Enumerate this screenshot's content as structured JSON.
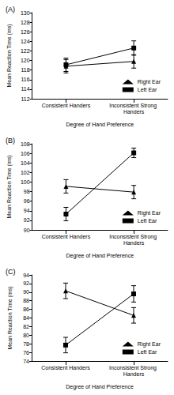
{
  "chart_data": [
    {
      "type": "line",
      "title": "(A)",
      "x_label": "Degree of Hand Preference",
      "y_label": "Mean Reaction Time (ms)",
      "categories": [
        "Consistent Handers",
        "Inconsistent Strong Handers"
      ],
      "ylim": [
        112,
        130
      ],
      "yticks": [
        112,
        114,
        116,
        118,
        120,
        122,
        124,
        126,
        128,
        130
      ],
      "grid": false,
      "legend": "lower right",
      "series": [
        {
          "name": "Right Ear",
          "color": "#000000",
          "marker": "triangle",
          "values": [
            118.8,
            119.8
          ],
          "errors": [
            1.4,
            1.4
          ]
        },
        {
          "name": "Left Ear",
          "color": "#000000",
          "marker": "square",
          "values": [
            119.1,
            122.6
          ],
          "errors": [
            1.4,
            1.5
          ]
        }
      ]
    },
    {
      "type": "line",
      "title": "(B)",
      "x_label": "Degree of Hand Preference",
      "y_label": "Mean Reaction Time (ms)",
      "categories": [
        "Consistent Handers",
        "Inconsistent Strong Handers"
      ],
      "ylim": [
        90,
        108
      ],
      "yticks": [
        90,
        92,
        94,
        96,
        98,
        100,
        102,
        104,
        106,
        108
      ],
      "grid": false,
      "legend": "lower right",
      "series": [
        {
          "name": "Right Ear",
          "color": "#000000",
          "marker": "triangle",
          "values": [
            99.1,
            97.9
          ],
          "errors": [
            1.4,
            1.4
          ]
        },
        {
          "name": "Left Ear",
          "color": "#000000",
          "marker": "square",
          "values": [
            93.3,
            106.1
          ],
          "errors": [
            1.4,
            1.0
          ]
        }
      ]
    },
    {
      "type": "line",
      "title": "(C)",
      "x_label": "Degree of Hand Preference",
      "y_label": "Mean Reaction Time (ms)",
      "categories": [
        "Consistent Handers",
        "Inconsistent Strong Handers"
      ],
      "ylim": [
        74,
        94
      ],
      "yticks": [
        74,
        76,
        78,
        80,
        82,
        84,
        86,
        88,
        90,
        92,
        94
      ],
      "grid": false,
      "legend": "lower right",
      "series": [
        {
          "name": "Right Ear",
          "color": "#000000",
          "marker": "triangle",
          "values": [
            90.3,
            84.6
          ],
          "errors": [
            1.8,
            1.8
          ]
        },
        {
          "name": "Left Ear",
          "color": "#000000",
          "marker": "square",
          "values": [
            77.7,
            89.6
          ],
          "errors": [
            1.8,
            1.9
          ]
        }
      ]
    }
  ]
}
